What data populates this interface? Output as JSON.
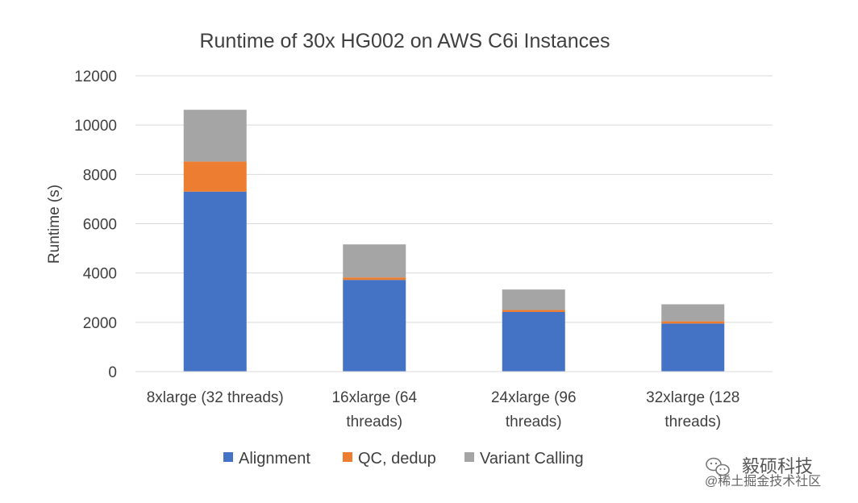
{
  "chart_data": {
    "type": "bar",
    "stacked": true,
    "title": "Runtime of 30x HG002 on AWS C6i Instances",
    "xlabel": "",
    "ylabel": "Runtime (s)",
    "ylim": [
      0,
      12000
    ],
    "yticks": [
      "0",
      "2000",
      "4000",
      "6000",
      "8000",
      "10000",
      "12000"
    ],
    "grid": true,
    "legend_position": "bottom",
    "categories": [
      [
        "8xlarge (32 threads)"
      ],
      [
        "16xlarge (64",
        "threads)"
      ],
      [
        "24xlarge (96",
        "threads)"
      ],
      [
        "32xlarge (128",
        "threads)"
      ]
    ],
    "series": [
      {
        "name": "Alignment",
        "color": "#4472c4",
        "values": [
          7300,
          3720,
          2420,
          1950
        ]
      },
      {
        "name": "QC, dedup",
        "color": "#ed7d31",
        "values": [
          1220,
          100,
          80,
          90
        ]
      },
      {
        "name": "Variant Calling",
        "color": "#a5a5a5",
        "values": [
          2100,
          1340,
          830,
          690
        ]
      }
    ]
  },
  "watermark": {
    "name": "毅硕科技",
    "sub": "@稀土掘金技术社区",
    "icon": "wechat-icon"
  }
}
